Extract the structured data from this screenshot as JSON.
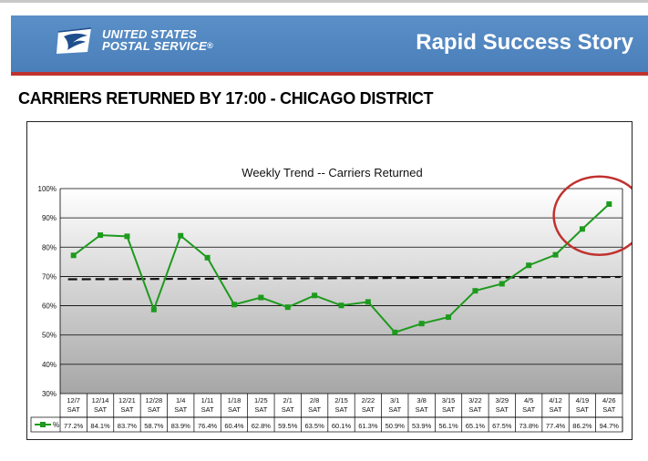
{
  "header": {
    "logo_line1": "UNITED STATES",
    "logo_line2": "POSTAL SERVICE",
    "logo_mark": "®",
    "title": "Rapid Success Story",
    "band_color": "#4f86c0",
    "accent_color": "#c0322f"
  },
  "slide_heading": "CARRIERS RETURNED BY 17:00 - CHICAGO DISTRICT",
  "chart_data": {
    "type": "line",
    "title": "Weekly Trend -- Carriers Returned",
    "categories": [
      "12/7",
      "12/14",
      "12/21",
      "12/28",
      "1/4",
      "1/11",
      "1/18",
      "1/25",
      "2/1",
      "2/8",
      "2/15",
      "2/22",
      "3/1",
      "3/8",
      "3/15",
      "3/22",
      "3/29",
      "4/5",
      "4/12",
      "4/19",
      "4/26"
    ],
    "day_label": "SAT",
    "yticks": [
      "30%",
      "40%",
      "50%",
      "60%",
      "70%",
      "80%",
      "90%",
      "100%"
    ],
    "ylim": [
      30,
      100
    ],
    "grid": true,
    "series": [
      {
        "name": "%",
        "color": "#1e9a1e",
        "values": [
          77.2,
          84.1,
          83.7,
          58.7,
          83.9,
          76.4,
          60.4,
          62.8,
          59.5,
          63.5,
          60.1,
          61.3,
          50.9,
          53.9,
          56.1,
          65.1,
          67.5,
          73.8,
          77.4,
          86.2,
          94.7
        ],
        "labels": [
          "77.2%",
          "84.1%",
          "83.7%",
          "58.7%",
          "83.9%",
          "76.4%",
          "60.4%",
          "62.8%",
          "59.5%",
          "63.5%",
          "60.1%",
          "61.3%",
          "50.9%",
          "53.9%",
          "56.1%",
          "65.1%",
          "67.5%",
          "73.8%",
          "77.4%",
          "86.2%",
          "94.7%"
        ]
      }
    ],
    "target": {
      "value": 69.5,
      "style": "dashed",
      "color": "#111111"
    },
    "highlight": {
      "covers": [
        "4/19",
        "4/26"
      ],
      "color": "#c0322f"
    }
  }
}
